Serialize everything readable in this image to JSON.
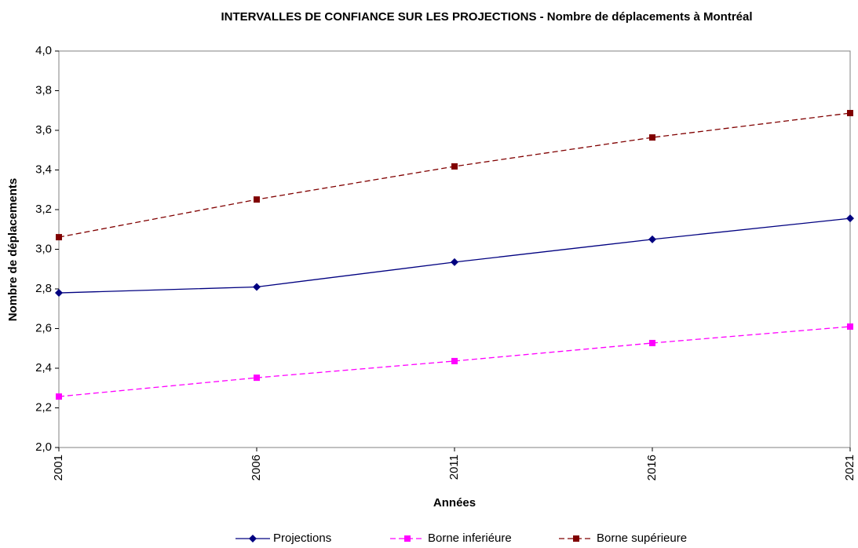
{
  "chart_data": {
    "type": "line",
    "title": "INTERVALLES DE CONFIANCE SUR LES PROJECTIONS - Nombre de déplacements à Montréal",
    "x_label": "Années",
    "y_label": "Nombre de déplacements",
    "x": [
      2001,
      2006,
      2011,
      2016,
      2021
    ],
    "xlim": [
      2001,
      2021
    ],
    "xticks": [
      2001,
      2006,
      2011,
      2016,
      2021
    ],
    "ylim": [
      2.0,
      4.0
    ],
    "yticks": [
      {
        "value": 2.0,
        "label": "2,0"
      },
      {
        "value": 2.2,
        "label": "2,2"
      },
      {
        "value": 2.4,
        "label": "2,4"
      },
      {
        "value": 2.6,
        "label": "2,6"
      },
      {
        "value": 2.8,
        "label": "2,8"
      },
      {
        "value": 3.0,
        "label": "3,0"
      },
      {
        "value": 3.2,
        "label": "3,2"
      },
      {
        "value": 3.4,
        "label": "3,4"
      },
      {
        "value": 3.6,
        "label": "3,6"
      },
      {
        "value": 3.8,
        "label": "3,8"
      },
      {
        "value": 4.0,
        "label": "4,0"
      }
    ],
    "grid": false,
    "legend": "bottom",
    "series": [
      {
        "name": "Projections",
        "color": "#000080",
        "values": [
          2.78,
          2.81,
          2.935,
          3.05,
          3.156
        ]
      },
      {
        "name": "Borne inferiéure",
        "color": "#ff00ff",
        "values": [
          2.257,
          2.352,
          2.436,
          2.527,
          2.61
        ]
      },
      {
        "name": "Borne supérieure",
        "color": "#800000",
        "values": [
          3.061,
          3.251,
          3.418,
          3.564,
          3.687
        ]
      }
    ]
  }
}
